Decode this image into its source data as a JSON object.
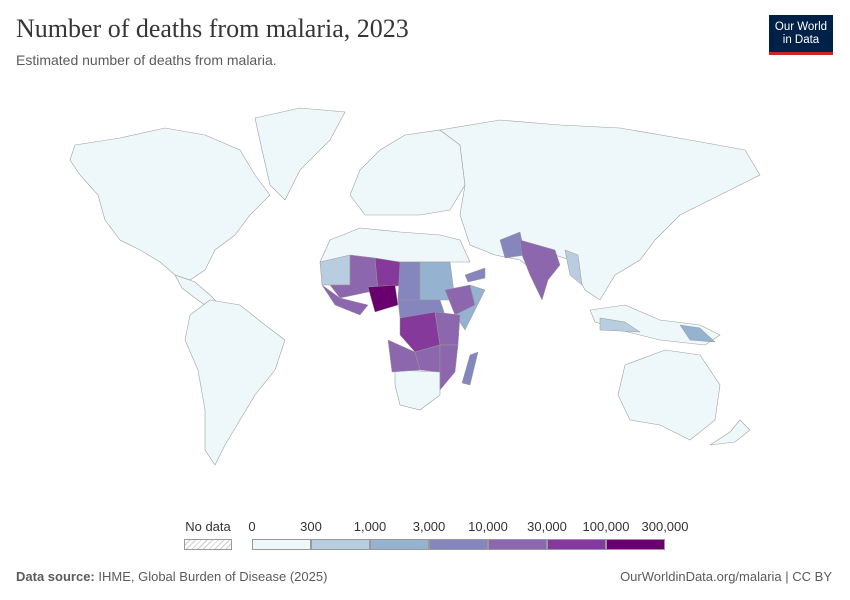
{
  "header": {
    "title": "Number of deaths from malaria, 2023",
    "subtitle": "Estimated number of deaths from malaria."
  },
  "logo": {
    "line1": "Our World",
    "line2": "in Data",
    "bg": "#002147",
    "accent": "#ce261e"
  },
  "legend": {
    "no_data_label": "No data",
    "ticks": [
      "0",
      "300",
      "1,000",
      "3,000",
      "10,000",
      "30,000",
      "100,000",
      "300,000"
    ],
    "colors": [
      "#eef7f9",
      "#b9cde0",
      "#96b2d1",
      "#8586bd",
      "#8d67ad",
      "#85399a",
      "#6a006e"
    ]
  },
  "footer": {
    "source_label": "Data source:",
    "source": "IHME, Global Burden of Disease (2025)",
    "url": "OurWorldinData.org/malaria | CC BY"
  }
}
